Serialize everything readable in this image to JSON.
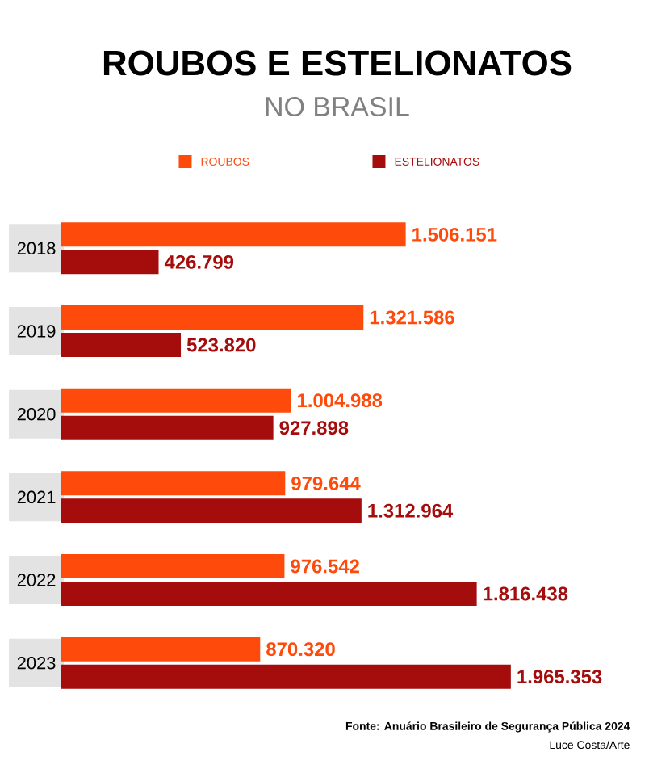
{
  "chart_data": {
    "type": "bar",
    "orientation": "horizontal",
    "title": "ROUBOS E ESTELIONATOS",
    "subtitle": "NO BRASIL",
    "categories": [
      "2018",
      "2019",
      "2020",
      "2021",
      "2022",
      "2023"
    ],
    "series": [
      {
        "name": "ROUBOS",
        "color": "#fe4a0a",
        "values": [
          1506151,
          1321586,
          1004988,
          979644,
          976542,
          870320
        ],
        "value_labels": [
          "1.506.151",
          "1.321.586",
          "1.004.988",
          "979.644",
          "976.542",
          "870.320"
        ]
      },
      {
        "name": "ESTELIONATOS",
        "color": "#a50d0d",
        "values": [
          426799,
          523820,
          927898,
          1312964,
          1816438,
          1965353
        ],
        "value_labels": [
          "426.799",
          "523.820",
          "927.898",
          "1.312.964",
          "1.816.438",
          "1.965.353"
        ]
      }
    ],
    "legend": "top",
    "annotations": [
      "Fonte: Anuário Brasileiro de Segurança Pública 2024",
      "Luce Costa/Arte"
    ]
  }
}
